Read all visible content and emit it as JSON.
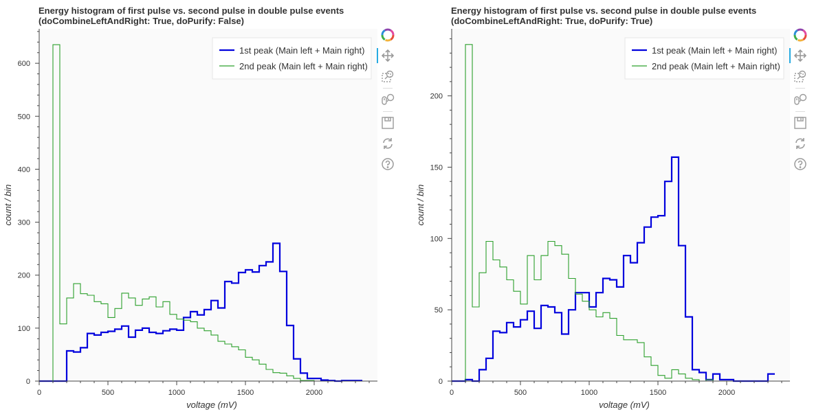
{
  "chart_data": [
    {
      "type": "line",
      "step": true,
      "title": "Energy histogram of first pulse vs. second pulse in double pulse events",
      "subtitle": "(doCombineLeftAndRight: True, doPurify: False)",
      "xlabel": "voltage (mV)",
      "ylabel": "count / bin",
      "xlim": [
        0,
        2460
      ],
      "ylim": [
        0,
        665
      ],
      "xticks": [
        0,
        500,
        1000,
        1500,
        2000
      ],
      "yticks": [
        0,
        100,
        200,
        300,
        400,
        500,
        600
      ],
      "grid": false,
      "legend_position": "top-right",
      "bin_edges": [
        0,
        50,
        100,
        150,
        200,
        250,
        300,
        350,
        400,
        450,
        500,
        550,
        600,
        650,
        700,
        750,
        800,
        850,
        900,
        950,
        1000,
        1050,
        1100,
        1150,
        1200,
        1250,
        1300,
        1350,
        1400,
        1450,
        1500,
        1550,
        1600,
        1650,
        1700,
        1750,
        1800,
        1850,
        1900,
        1950,
        2000,
        2050,
        2100,
        2150,
        2200,
        2250,
        2300,
        2350
      ],
      "series": [
        {
          "name": "1st peak (Main left + Main right)",
          "color": "#0000dd",
          "values": [
            0,
            0,
            0,
            0,
            57,
            55,
            63,
            90,
            87,
            92,
            94,
            98,
            104,
            83,
            96,
            100,
            92,
            90,
            95,
            98,
            96,
            120,
            131,
            125,
            135,
            152,
            138,
            188,
            185,
            205,
            210,
            206,
            218,
            225,
            260,
            207,
            105,
            42,
            15,
            5,
            5,
            2,
            1,
            0,
            1,
            1,
            1
          ]
        },
        {
          "name": "2nd peak (Main left + Main right)",
          "color": "#2ca02c",
          "values": [
            0,
            0,
            635,
            108,
            157,
            184,
            165,
            162,
            150,
            146,
            120,
            137,
            166,
            157,
            143,
            155,
            159,
            140,
            150,
            126,
            117,
            115,
            112,
            100,
            95,
            87,
            75,
            70,
            65,
            59,
            45,
            40,
            32,
            22,
            16,
            15,
            10,
            5,
            1,
            1,
            0,
            0,
            0,
            0,
            0,
            0,
            0
          ]
        }
      ]
    },
    {
      "type": "line",
      "step": true,
      "title": "Energy histogram of first pulse vs. second pulse in double pulse events",
      "subtitle": "(doCombineLeftAndRight: True, doPurify: True)",
      "xlabel": "voltage (mV)",
      "ylabel": "count / bin",
      "xlim": [
        0,
        2460
      ],
      "ylim": [
        0,
        247
      ],
      "xticks": [
        0,
        500,
        1000,
        1500,
        2000
      ],
      "yticks": [
        0,
        50,
        100,
        150,
        200
      ],
      "grid": false,
      "legend_position": "top-right",
      "bin_edges": [
        0,
        50,
        100,
        150,
        200,
        250,
        300,
        350,
        400,
        450,
        500,
        550,
        600,
        650,
        700,
        750,
        800,
        850,
        900,
        950,
        1000,
        1050,
        1100,
        1150,
        1200,
        1250,
        1300,
        1350,
        1400,
        1450,
        1500,
        1550,
        1600,
        1650,
        1700,
        1750,
        1800,
        1850,
        1900,
        1950,
        2000,
        2050,
        2100,
        2150,
        2200,
        2250,
        2300,
        2350
      ],
      "series": [
        {
          "name": "1st peak (Main left + Main right)",
          "color": "#0000dd",
          "values": [
            0,
            0,
            1,
            0,
            8,
            16,
            35,
            34,
            41,
            38,
            43,
            49,
            37,
            53,
            52,
            48,
            33,
            50,
            62,
            62,
            52,
            62,
            72,
            71,
            66,
            88,
            83,
            97,
            108,
            115,
            116,
            140,
            157,
            95,
            45,
            8,
            6,
            1,
            5,
            1,
            1,
            0,
            0,
            0,
            0,
            0,
            5
          ]
        },
        {
          "name": "2nd peak (Main left + Main right)",
          "color": "#2ca02c",
          "values": [
            0,
            0,
            236,
            52,
            76,
            98,
            85,
            80,
            71,
            63,
            54,
            88,
            71,
            88,
            98,
            95,
            89,
            72,
            61,
            56,
            50,
            45,
            48,
            44,
            32,
            29,
            29,
            27,
            17,
            11,
            4,
            2,
            8,
            5,
            2,
            1,
            0,
            1,
            0,
            0,
            0,
            0,
            0,
            0,
            0,
            0,
            0
          ]
        }
      ]
    }
  ],
  "toolbar": {
    "items": [
      "bokeh-logo-icon",
      "pan-icon",
      "box-zoom-icon",
      "wheel-zoom-icon",
      "save-icon",
      "reset-icon",
      "help-icon"
    ]
  }
}
